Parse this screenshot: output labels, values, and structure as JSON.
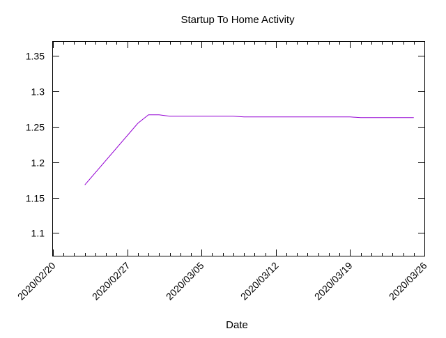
{
  "chart_data": {
    "type": "line",
    "title": "Startup To Home Activity",
    "xlabel": "Date",
    "ylabel": "",
    "x_tick_labels": [
      "2020/02/20",
      "2020/02/27",
      "2020/03/05",
      "2020/03/12",
      "2020/03/19",
      "2020/03/26"
    ],
    "y_tick_labels": [
      "1.1",
      "1.15",
      "1.2",
      "1.25",
      "1.3",
      "1.35"
    ],
    "xlim": [
      "2020-02-20",
      "2020-03-26"
    ],
    "ylim": [
      1.068,
      1.37
    ],
    "grid": false,
    "legend": "none",
    "series": [
      {
        "color": "#9400d3",
        "points": [
          {
            "x": "2020-02-23",
            "y": 1.168
          },
          {
            "x": "2020-02-28",
            "y": 1.255
          },
          {
            "x": "2020-02-29",
            "y": 1.267
          },
          {
            "x": "2020-03-01",
            "y": 1.267
          },
          {
            "x": "2020-03-02",
            "y": 1.265
          },
          {
            "x": "2020-03-08",
            "y": 1.265
          },
          {
            "x": "2020-03-09",
            "y": 1.264
          },
          {
            "x": "2020-03-15",
            "y": 1.264
          },
          {
            "x": "2020-03-19",
            "y": 1.264
          },
          {
            "x": "2020-03-20",
            "y": 1.263
          },
          {
            "x": "2020-03-25",
            "y": 1.263
          }
        ]
      }
    ]
  }
}
